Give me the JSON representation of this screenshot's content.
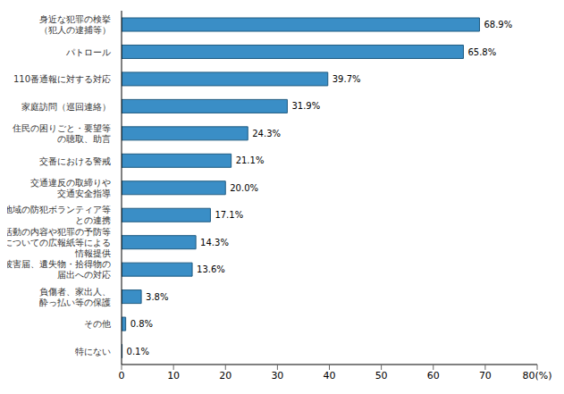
{
  "chart_data": {
    "type": "bar",
    "orientation": "horizontal",
    "categories": [
      "身近な犯罪の検挙\n（犯人の逮捕等）",
      "パトロール",
      "110番通報に対する対応",
      "家庭訪問（巡回連絡）",
      "住民の困りごと・要望等\nの聴取、助言",
      "交番における警戒",
      "交通違反の取締りや\n交通安全指導",
      "地域の防犯ボランティア等\nとの連携",
      "活動の内容や犯罪の予防等\nについての広報紙等による\n情報提供",
      "被害届、遺失物・拾得物の\n届出への対応",
      "負傷者、家出人、\n酔っ払い等の保護",
      "その他",
      "特にない"
    ],
    "values": [
      68.9,
      65.8,
      39.7,
      31.9,
      24.3,
      21.1,
      20.0,
      17.1,
      14.3,
      13.6,
      3.8,
      0.8,
      0.1
    ],
    "value_labels": [
      "68.9%",
      "65.8%",
      "39.7%",
      "31.9%",
      "24.3%",
      "21.1%",
      "20.0%",
      "17.1%",
      "14.3%",
      "13.6%",
      "3.8%",
      "0.8%",
      "0.1%"
    ],
    "data_labels": true,
    "color": "#3a8ec6",
    "xlim": [
      0,
      80
    ],
    "xticks": [
      0,
      10,
      20,
      30,
      40,
      50,
      60,
      70,
      {
        "value": 80,
        "label": "80(%)"
      }
    ],
    "grid": false
  }
}
